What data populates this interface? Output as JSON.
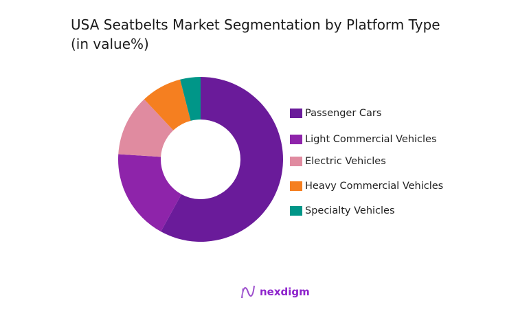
{
  "chart_data": {
    "type": "pie",
    "donut": true,
    "title": "USA Seatbelts Market Segmentation by Platform Type (in value%)",
    "title_lines": [
      "USA Seatbelts Market Segmentation by Platform Type",
      "(in value%)"
    ],
    "categories": [
      "Passenger Cars",
      "Light Commercial Vehicles",
      "Electric Vehicles",
      "Heavy Commercial Vehicles",
      "Specialty Vehicles"
    ],
    "values": [
      58,
      18,
      12,
      8,
      4
    ],
    "colors": [
      "#6a1b9a",
      "#8e24aa",
      "#e08ba0",
      "#f57f20",
      "#009688"
    ],
    "legend_position": "right"
  },
  "brand": {
    "name": "nexdigm"
  }
}
